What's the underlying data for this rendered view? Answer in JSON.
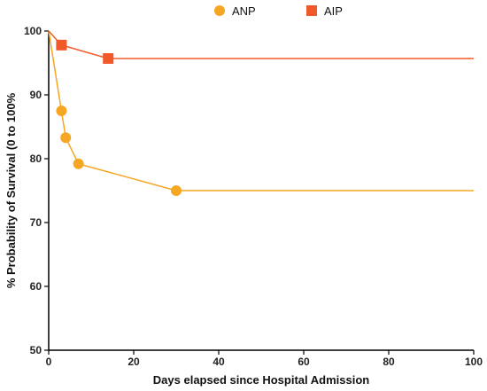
{
  "chart_data": {
    "type": "line",
    "xlabel": "Days elapsed since Hospital Admission",
    "ylabel": "% Probability of Survival (0 to 100%",
    "xlim": [
      0,
      100
    ],
    "ylim": [
      50,
      100
    ],
    "xticks": [
      "0",
      "20",
      "40",
      "60",
      "80",
      "100"
    ],
    "yticks": [
      "50",
      "60",
      "70",
      "80",
      "90",
      "100"
    ],
    "grid": false,
    "legend_position": "top-center",
    "series": [
      {
        "name": "ANP",
        "color": "#f5a623",
        "marker": "circle",
        "x": [
          0,
          3,
          4,
          7,
          30,
          100
        ],
        "y": [
          100,
          87.5,
          83.3,
          79.2,
          75.0,
          75.0
        ],
        "marked": [
          false,
          true,
          true,
          true,
          true,
          false
        ]
      },
      {
        "name": "AIP",
        "color": "#f05a28",
        "marker": "square",
        "x": [
          0,
          3,
          14,
          100
        ],
        "y": [
          100,
          97.8,
          95.7,
          95.7
        ],
        "marked": [
          false,
          true,
          true,
          false
        ]
      }
    ]
  }
}
